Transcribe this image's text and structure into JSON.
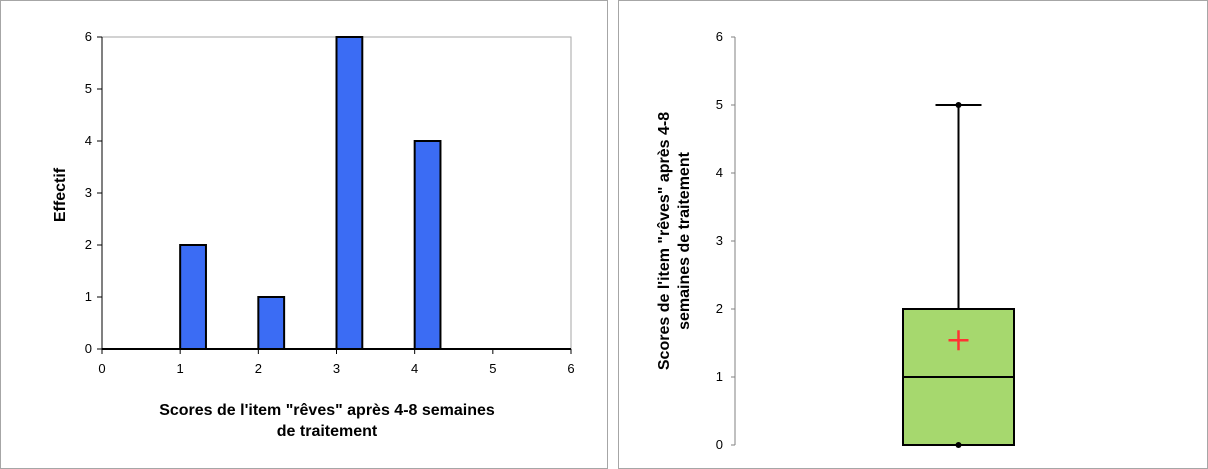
{
  "chart_data": [
    {
      "type": "bar",
      "title": "",
      "xlabel_lines": [
        "Scores de l'item \"rêves\" après 4-8 semaines",
        "de traitement"
      ],
      "ylabel": "Effectif",
      "xlim": [
        0,
        6
      ],
      "ylim": [
        0,
        6
      ],
      "xticks": [
        "0",
        "1",
        "2",
        "3",
        "4",
        "5",
        "6"
      ],
      "yticks": [
        "0",
        "1",
        "2",
        "3",
        "4",
        "5",
        "6"
      ],
      "x": [
        1,
        2,
        3,
        4
      ],
      "values": [
        2,
        1,
        6,
        4
      ],
      "bar_color": "#3b6cf4",
      "grid": false
    },
    {
      "type": "box",
      "title": "",
      "ylabel_lines": [
        "Scores de l'item \"rêves\" après 4-8",
        "semaines de traitement"
      ],
      "ylim": [
        0,
        6
      ],
      "yticks": [
        "0",
        "1",
        "2",
        "3",
        "4",
        "5",
        "6"
      ],
      "min": 0,
      "q1": 0,
      "median": 1,
      "q3": 2,
      "max": 5,
      "mean": 1.54,
      "box_color": "#a6d86e",
      "mean_marker_color": "#ff3333",
      "grid": false
    }
  ]
}
